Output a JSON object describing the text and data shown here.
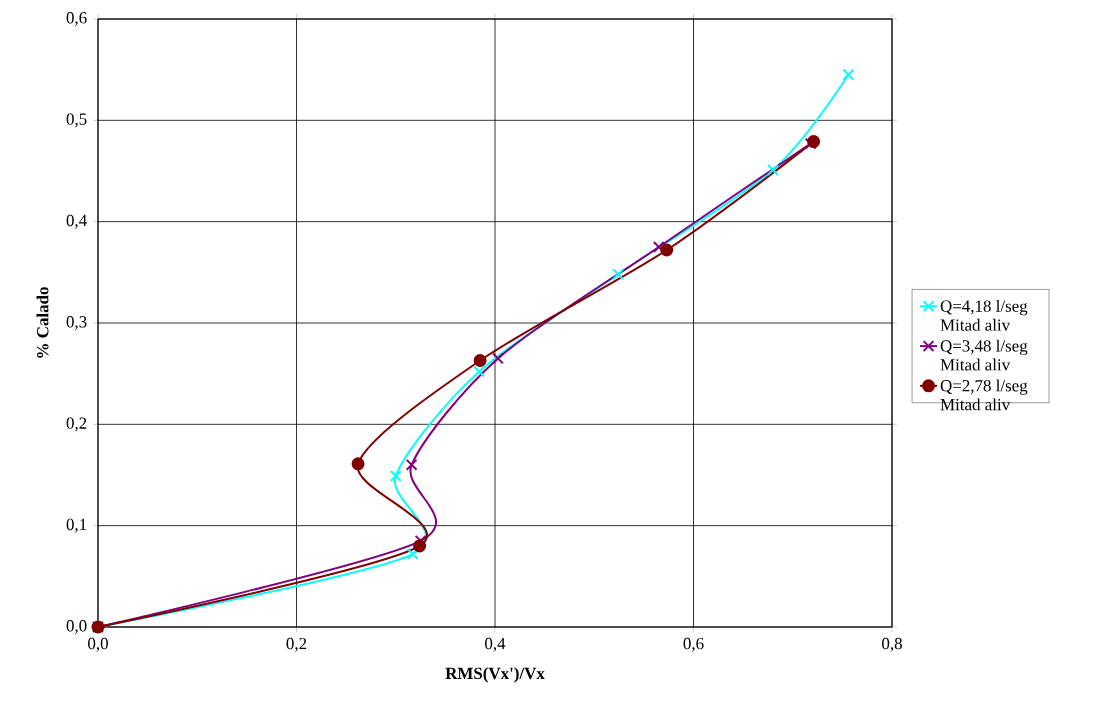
{
  "chart_data": {
    "type": "line",
    "xlabel": "RMS(Vx')/Vx",
    "ylabel": "% Calado",
    "xlim": [
      0,
      0.8
    ],
    "ylim": [
      0,
      0.6
    ],
    "xticks": [
      {
        "value": 0,
        "label": "0,0"
      },
      {
        "value": 0.2,
        "label": "0,2"
      },
      {
        "value": 0.4,
        "label": "0,4"
      },
      {
        "value": 0.6,
        "label": "0,6"
      },
      {
        "value": 0.8,
        "label": "0,8"
      }
    ],
    "yticks": [
      {
        "value": 0,
        "label": "0,0"
      },
      {
        "value": 0.1,
        "label": "0,1"
      },
      {
        "value": 0.2,
        "label": "0,2"
      },
      {
        "value": 0.3,
        "label": "0,3"
      },
      {
        "value": 0.4,
        "label": "0,4"
      },
      {
        "value": 0.5,
        "label": "0,5"
      },
      {
        "value": 0.6,
        "label": "0,6"
      }
    ],
    "grid": true,
    "legend": "right",
    "series": [
      {
        "name": "Q=4,18 l/seg Mitad aliv",
        "color": "#00ffff",
        "marker": "cross",
        "x": [
          0,
          0.317,
          0.3,
          0.384,
          0.524,
          0.68,
          0.756
        ],
        "values": [
          0,
          0.072,
          0.149,
          0.252,
          0.348,
          0.451,
          0.545
        ]
      },
      {
        "name": "Q=3,48 l/seg Mitad aliv",
        "color": "#800080",
        "marker": "cross",
        "x": [
          0,
          0.325,
          0.316,
          0.403,
          0.565,
          0.718
        ],
        "values": [
          0,
          0.085,
          0.16,
          0.265,
          0.375,
          0.477
        ]
      },
      {
        "name": "Q=2,78 l/seg Mitad aliv",
        "color": "#800000",
        "marker": "circle",
        "x": [
          0,
          0.324,
          0.262,
          0.385,
          0.573,
          0.721
        ],
        "values": [
          0,
          0.08,
          0.161,
          0.263,
          0.372,
          0.479
        ]
      }
    ]
  }
}
